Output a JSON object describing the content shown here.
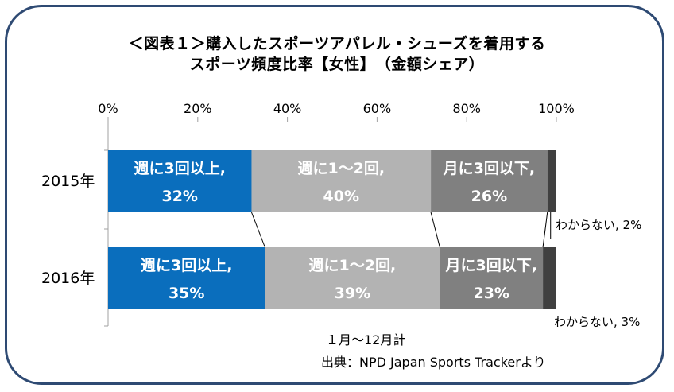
{
  "chart_data": {
    "type": "bar",
    "stacked": true,
    "orientation": "horizontal",
    "title": "＜図表１＞購入したスポーツアパレル・シューズを着用する",
    "subtitle": "スポーツ頻度比率【女性】　（金額シェア）",
    "categories": [
      "2015年",
      "2016年"
    ],
    "xlim": [
      0,
      100
    ],
    "x_ticks": [
      "0%",
      "20%",
      "40%",
      "60%",
      "80%",
      "100%"
    ],
    "series": [
      {
        "name": "週に3回以上",
        "values": [
          32,
          35
        ],
        "color": "#0a6ebd",
        "text_color": "#ffffff"
      },
      {
        "name": "週に1〜2回",
        "values": [
          40,
          39
        ],
        "color": "#b3b3b3",
        "text_color": "#ffffff"
      },
      {
        "name": "月に3回以下",
        "values": [
          26,
          23
        ],
        "color": "#808080",
        "text_color": "#ffffff"
      },
      {
        "name": "わからない",
        "values": [
          2,
          3
        ],
        "color": "#404040",
        "text_color": "#000000"
      }
    ],
    "data_labels": [
      [
        "週に3回以上,",
        "32%"
      ],
      [
        "週に1〜2回,",
        "40%"
      ],
      [
        "月に3回以下,",
        "26%"
      ],
      [
        "わからない, 2%"
      ],
      [
        "週に3回以上,",
        "35%"
      ],
      [
        "週に1〜2回,",
        "39%"
      ],
      [
        "月に3回以下,",
        "23%"
      ],
      [
        "わからない, 3%"
      ]
    ],
    "series_lines": true,
    "grid": false
  },
  "notes": {
    "period": "１月〜12月計",
    "source": "出典：NPD Japan Sports Trackerより"
  }
}
